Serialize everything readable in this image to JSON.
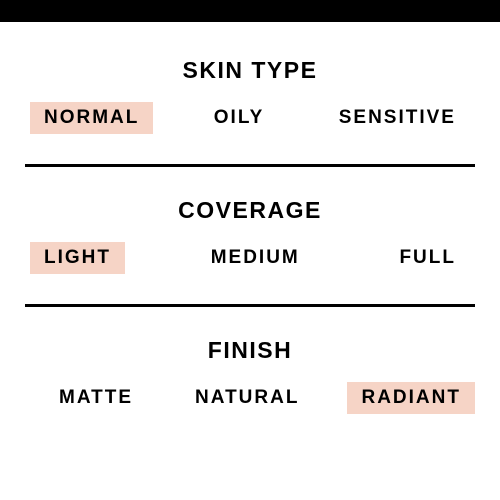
{
  "colors": {
    "background": "#ffffff",
    "text": "#000000",
    "highlight": "#f6d4c6",
    "bar": "#000000"
  },
  "typography": {
    "title_fontsize": 23,
    "option_fontsize": 19,
    "font_weight": 900,
    "title_letter_spacing": 1.5,
    "option_letter_spacing": 2
  },
  "sections": {
    "skin_type": {
      "title": "SKIN TYPE",
      "options": [
        {
          "label": "NORMAL",
          "selected": true
        },
        {
          "label": "OILY",
          "selected": false
        },
        {
          "label": "SENSITIVE",
          "selected": false
        }
      ]
    },
    "coverage": {
      "title": "COVERAGE",
      "options": [
        {
          "label": "LIGHT",
          "selected": true
        },
        {
          "label": "MEDIUM",
          "selected": false
        },
        {
          "label": "FULL",
          "selected": false
        }
      ]
    },
    "finish": {
      "title": "FINISH",
      "options": [
        {
          "label": "MATTE",
          "selected": false
        },
        {
          "label": "NATURAL",
          "selected": false
        },
        {
          "label": "RADIANT",
          "selected": true
        }
      ]
    }
  }
}
